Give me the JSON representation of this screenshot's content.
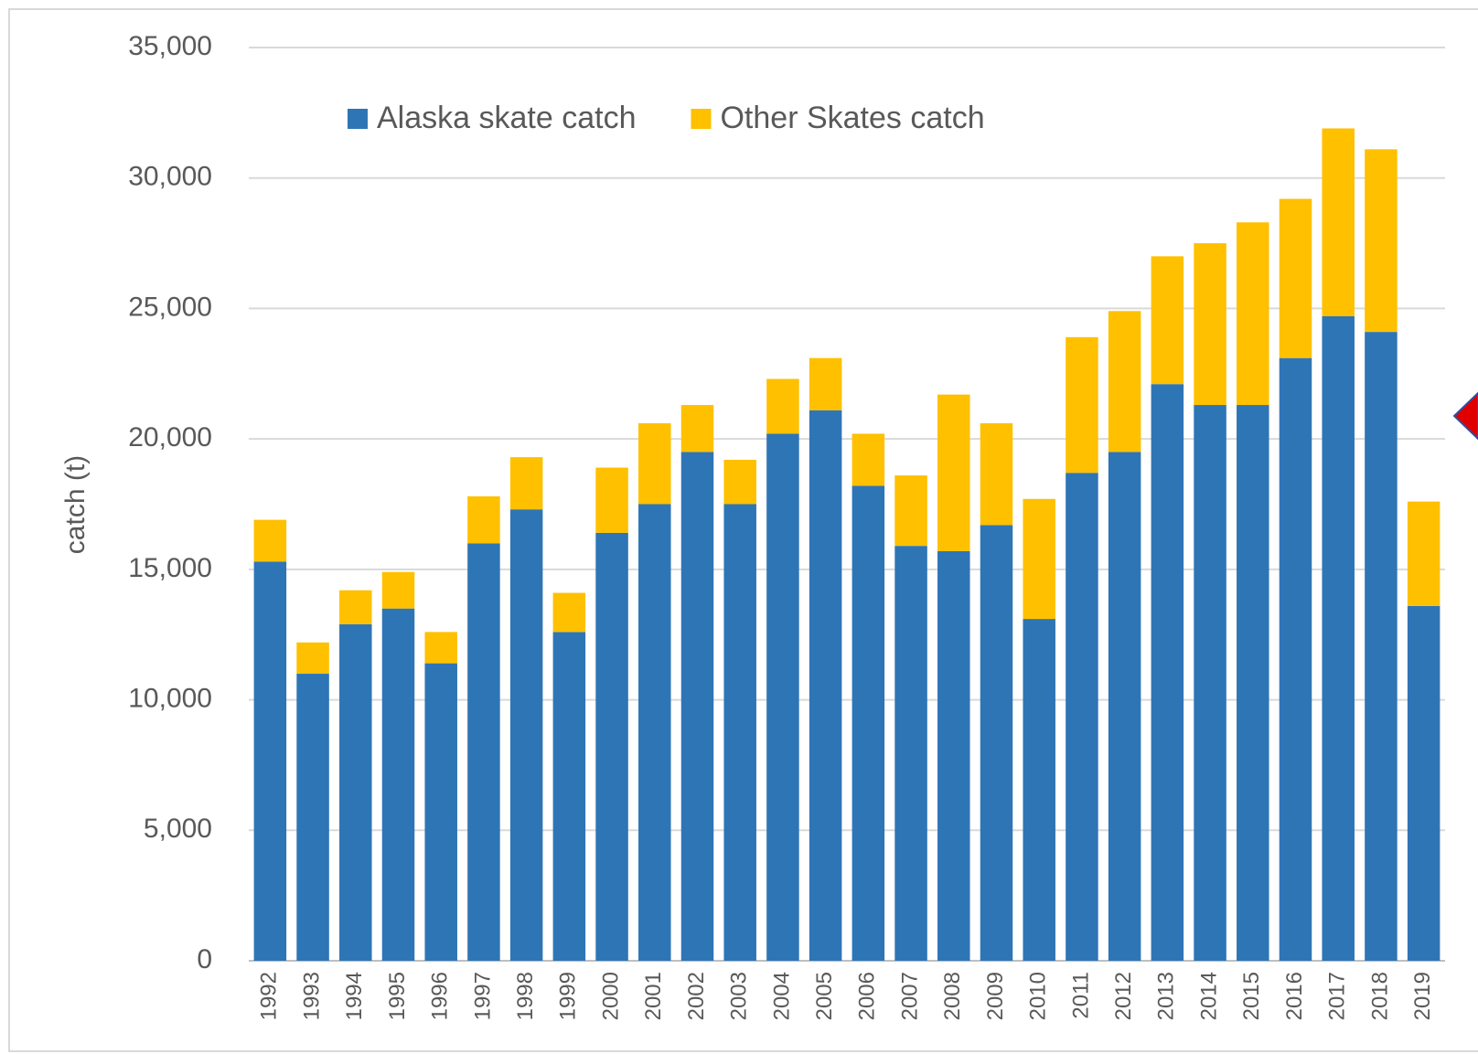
{
  "chart_data": {
    "type": "stacked_bar",
    "y_label": "catch (t)",
    "categories": [
      "1992",
      "1993",
      "1994",
      "1995",
      "1996",
      "1997",
      "1998",
      "1999",
      "2000",
      "2001",
      "2002",
      "2003",
      "2004",
      "2005",
      "2006",
      "2007",
      "2008",
      "2009",
      "2010",
      "2011",
      "2012",
      "2013",
      "2014",
      "2015",
      "2016",
      "2017",
      "2018",
      "2019"
    ],
    "series": [
      {
        "name": "Alaska skate catch",
        "color": "#2e75b6",
        "values": [
          15300,
          11000,
          12900,
          13500,
          11400,
          16000,
          17300,
          12600,
          16400,
          17500,
          19500,
          17500,
          20200,
          21100,
          18200,
          15900,
          15700,
          16700,
          13100,
          18700,
          19500,
          22100,
          21300,
          21300,
          23100,
          24700,
          24100,
          13600
        ]
      },
      {
        "name": "Other Skates catch",
        "color": "#ffc000",
        "values": [
          1600,
          1200,
          1300,
          1400,
          1200,
          1800,
          2000,
          1500,
          2500,
          3100,
          1800,
          1700,
          2100,
          2000,
          2000,
          2700,
          6000,
          3900,
          4600,
          5200,
          5400,
          4900,
          6200,
          7000,
          6100,
          7200,
          7000,
          4000
        ]
      }
    ],
    "ylim": [
      0,
      35000
    ],
    "yticks": [
      0,
      {
        "value": 5000,
        "label": "5,000"
      },
      {
        "value": 10000,
        "label": "10,000"
      },
      {
        "value": 15000,
        "label": "15,000"
      },
      {
        "value": 20000,
        "label": "20,000"
      },
      {
        "value": 25000,
        "label": "25,000"
      },
      {
        "value": 30000,
        "label": "30,000"
      },
      {
        "value": 35000,
        "label": "35,000"
      }
    ],
    "grid": true
  }
}
